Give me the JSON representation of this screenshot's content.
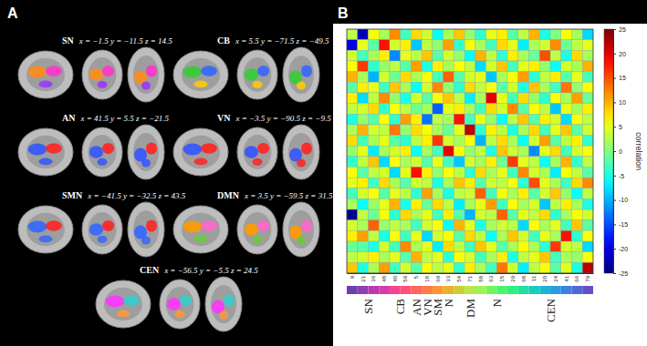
{
  "panel_a": {
    "label": "A",
    "networks": [
      {
        "name": "SN",
        "coords": "x = −1.5 y = −11.5 z = 14.5"
      },
      {
        "name": "CB",
        "coords": "x = 5.5 y = −71.5 z = −49.5"
      },
      {
        "name": "AN",
        "coords": "x = 41.5 y = 5.5 z = −21.5"
      },
      {
        "name": "VN",
        "coords": "x = −3.5 y = −90.5 z = −9.5"
      },
      {
        "name": "SMN",
        "coords": "x = −41.5 y = −32.5 z = 43.5"
      },
      {
        "name": "DMN",
        "coords": "x = 3.5 y = −59.5 z = 31.5"
      },
      {
        "name": "CEN",
        "coords": "x = −56.5 y = −5.5 z = 24.5"
      }
    ]
  },
  "chart_data": {
    "type": "heatmap",
    "title": "B",
    "x": [
      "9",
      "21",
      "36",
      "48",
      "40",
      "59",
      "5",
      "18",
      "69",
      "33",
      "54",
      "71",
      "58",
      "63",
      "15",
      "29",
      "68",
      "11",
      "20",
      "24",
      "41",
      "66",
      "79"
    ],
    "group_of": [
      "SN",
      "SN",
      "SN",
      "SN",
      "CB",
      "CB",
      "AN",
      "VN",
      "SM",
      "N",
      "DM",
      "DM",
      "DM",
      "N",
      "N",
      "CEN",
      "CEN",
      "CEN",
      "CEN",
      "CEN",
      "CEN",
      "CEN",
      "CEN"
    ],
    "values": [
      [
        3,
        -22,
        6,
        2,
        12,
        -3,
        8,
        4,
        -6,
        2,
        9,
        1,
        -4,
        5,
        7,
        -2,
        3,
        10,
        -5,
        0,
        6,
        2,
        -8
      ],
      [
        -20,
        5,
        -2,
        18,
        4,
        7,
        -9,
        3,
        1,
        11,
        -4,
        6,
        2,
        -3,
        8,
        5,
        -7,
        2,
        4,
        12,
        -1,
        3,
        5
      ],
      [
        4,
        -3,
        2,
        7,
        -12,
        5,
        3,
        9,
        -2,
        4,
        1,
        -6,
        10,
        3,
        -4,
        7,
        2,
        -1,
        15,
        3,
        -5,
        8,
        2
      ],
      [
        6,
        16,
        -4,
        1,
        3,
        -2,
        11,
        -5,
        7,
        2,
        6,
        3,
        -8,
        4,
        9,
        -3,
        5,
        7,
        1,
        -6,
        4,
        2,
        10
      ],
      [
        10,
        2,
        -10,
        4,
        -1,
        8,
        2,
        6,
        -3,
        14,
        -2,
        4,
        5,
        -9,
        2,
        6,
        11,
        -4,
        3,
        7,
        -2,
        5,
        -3
      ],
      [
        -2,
        7,
        5,
        -3,
        9,
        2,
        -6,
        4,
        12,
        1,
        -4,
        8,
        3,
        6,
        -2,
        4,
        -5,
        9,
        2,
        -3,
        13,
        1,
        6
      ],
      [
        7,
        -8,
        3,
        12,
        1,
        -5,
        4,
        -2,
        6,
        9,
        3,
        -7,
        2,
        20,
        5,
        -3,
        8,
        1,
        -4,
        6,
        2,
        11,
        -1
      ],
      [
        3,
        4,
        8,
        -4,
        6,
        3,
        -1,
        2,
        -14,
        5,
        7,
        2,
        -3,
        8,
        4,
        12,
        -2,
        6,
        3,
        -9,
        5,
        2,
        7
      ],
      [
        -5,
        1,
        -2,
        6,
        -4,
        11,
        7,
        -13,
        3,
        2,
        18,
        -3,
        5,
        1,
        -6,
        3,
        9,
        -2,
        7,
        4,
        -8,
        6,
        3
      ],
      [
        2,
        10,
        4,
        3,
        13,
        1,
        8,
        6,
        2,
        -1,
        5,
        22,
        -4,
        7,
        3,
        -5,
        2,
        8,
        -3,
        5,
        9,
        -2,
        4
      ],
      [
        8,
        -3,
        2,
        5,
        -2,
        -4,
        3,
        7,
        16,
        4,
        2,
        6,
        -10,
        3,
        8,
        2,
        -6,
        4,
        11,
        -2,
        3,
        7,
        -4
      ],
      [
        1,
        5,
        -7,
        2,
        4,
        7,
        -6,
        2,
        -3,
        20,
        6,
        1,
        3,
        -5,
        9,
        4,
        2,
        -12,
        5,
        8,
        -3,
        4,
        6
      ],
      [
        -4,
        3,
        9,
        -8,
        6,
        2,
        4,
        -2,
        5,
        -3,
        -9,
        4,
        2,
        7,
        -1,
        16,
        5,
        3,
        -6,
        2,
        10,
        -4,
        3
      ],
      [
        6,
        -2,
        3,
        4,
        -8,
        5,
        18,
        7,
        1,
        6,
        3,
        -4,
        8,
        2,
        5,
        -3,
        12,
        4,
        2,
        -7,
        6,
        3,
        -2
      ],
      [
        5,
        7,
        -3,
        8,
        2,
        -2,
        4,
        3,
        -5,
        2,
        9,
        7,
        -2,
        4,
        3,
        6,
        -4,
        15,
        5,
        2,
        -3,
        8,
        12
      ],
      [
        -3,
        4,
        6,
        -2,
        5,
        3,
        -4,
        11,
        2,
        -5,
        3,
        4,
        14,
        -3,
        6,
        2,
        7,
        -2,
        4,
        9,
        1,
        -6,
        3
      ],
      [
        2,
        -6,
        1,
        5,
        10,
        -5,
        7,
        -1,
        8,
        3,
        -7,
        2,
        5,
        11,
        -3,
        6,
        2,
        4,
        -9,
        3,
        7,
        2,
        -5
      ],
      [
        -24,
        3,
        -1,
        6,
        -4,
        8,
        2,
        5,
        -3,
        7,
        -2,
        -10,
        4,
        3,
        14,
        -2,
        5,
        3,
        8,
        -4,
        2,
        6,
        4
      ],
      [
        4,
        2,
        14,
        1,
        3,
        2,
        -3,
        4,
        6,
        -6,
        10,
        5,
        -5,
        2,
        4,
        3,
        -8,
        6,
        2,
        5,
        -3,
        9,
        -2
      ],
      [
        7,
        11,
        3,
        -5,
        6,
        -3,
        5,
        -8,
        4,
        6,
        -2,
        8,
        3,
        -6,
        2,
        9,
        4,
        -3,
        5,
        2,
        18,
        -4,
        6
      ],
      [
        -1,
        -2,
        -5,
        4,
        -3,
        12,
        2,
        5,
        -7,
        8,
        3,
        -3,
        9,
        5,
        -2,
        2,
        6,
        2,
        -4,
        16,
        4,
        3,
        -8
      ],
      [
        3,
        4,
        7,
        2,
        5,
        -2,
        10,
        3,
        5,
        -4,
        6,
        4,
        -3,
        2,
        7,
        -5,
        3,
        5,
        9,
        -3,
        2,
        1,
        6
      ],
      [
        9,
        -5,
        2,
        11,
        -3,
        4,
        -2,
        6,
        3,
        5,
        -4,
        7,
        2,
        -3,
        13,
        4,
        -7,
        3,
        6,
        -2,
        5,
        -5,
        22
      ]
    ],
    "color_range": [
      -25,
      25
    ],
    "color_ticks": [
      25,
      20,
      15,
      10,
      5,
      0,
      -5,
      -10,
      -15,
      -20,
      -25
    ],
    "colorbar_label": "correlation"
  }
}
